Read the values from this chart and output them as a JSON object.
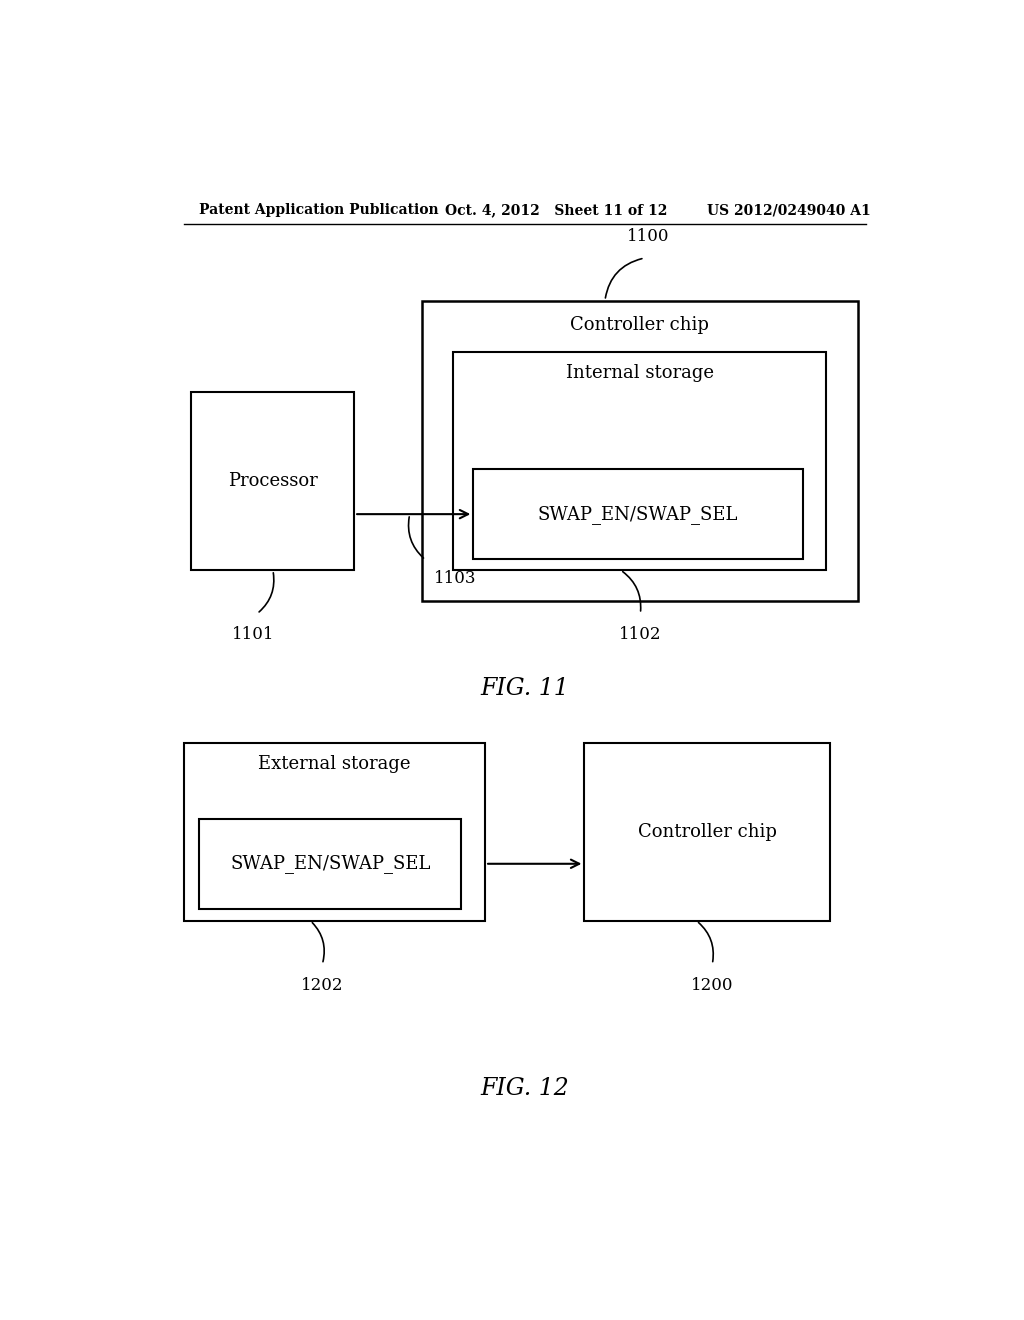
{
  "bg_color": "#ffffff",
  "header_left": "Patent Application Publication",
  "header_mid": "Oct. 4, 2012   Sheet 11 of 12",
  "header_right": "US 2012/0249040 A1",
  "fig11_label": "FIG. 11",
  "fig12_label": "FIG. 12",
  "fig11": {
    "controller_chip_label": "Controller chip",
    "controller_chip_id": "1100",
    "internal_storage_label": "Internal storage",
    "swap_label": "SWAP_EN/SWAP_SEL",
    "processor_label": "Processor",
    "processor_id": "1101",
    "internal_storage_id": "1102",
    "arrow_id": "1103"
  },
  "fig12": {
    "ext_storage_label": "External storage",
    "swap_label": "SWAP_EN/SWAP_SEL",
    "controller_label": "Controller chip",
    "ext_storage_id": "1202",
    "controller_id": "1200"
  }
}
